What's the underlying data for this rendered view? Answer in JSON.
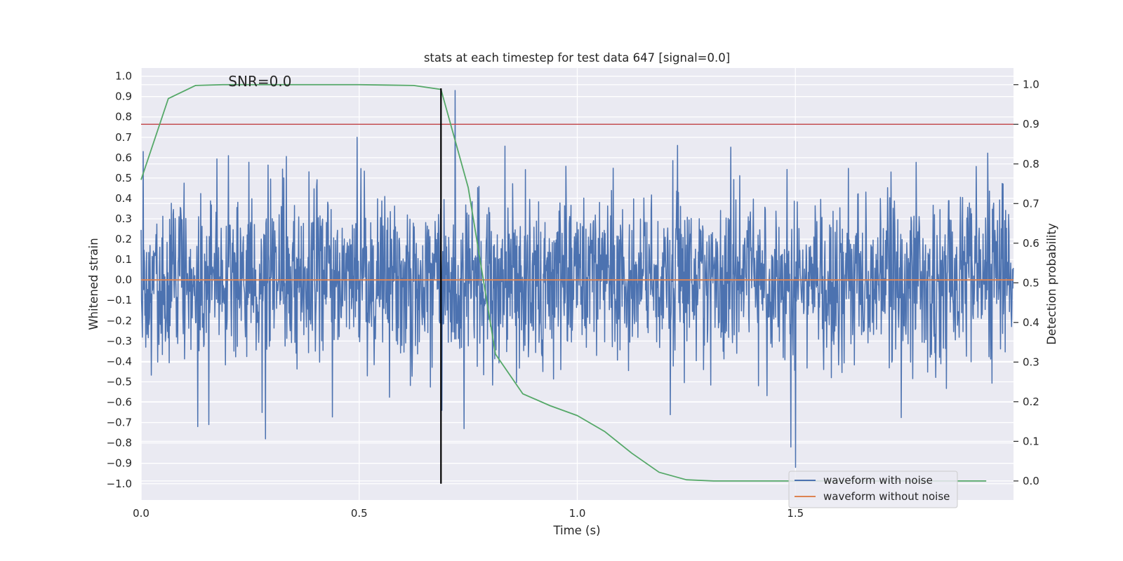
{
  "chart_data": {
    "type": "line",
    "title": "stats at each timestep for test data 647 [signal=0.0]",
    "xlabel": "Time (s)",
    "ylabel_left": "Whitened strain",
    "ylabel_right": "Detection probability",
    "xlim": [
      0.0,
      2.0
    ],
    "ylim_left": [
      -1.08,
      1.04
    ],
    "ylim_right": [
      -0.048,
      1.042
    ],
    "x_ticks": [
      "0.0",
      "0.5",
      "1.0",
      "1.5"
    ],
    "x_tick_values": [
      0.0,
      0.5,
      1.0,
      1.5
    ],
    "y_ticks_left": [
      "1.0",
      "0.9",
      "0.8",
      "0.7",
      "0.6",
      "0.5",
      "0.4",
      "0.3",
      "0.2",
      "0.1",
      "0.0",
      "−0.1",
      "−0.2",
      "−0.3",
      "−0.4",
      "−0.5",
      "−0.6",
      "−0.7",
      "−0.8",
      "−0.9",
      "−1.0"
    ],
    "y_tick_values_left": [
      1.0,
      0.9,
      0.8,
      0.7,
      0.6,
      0.5,
      0.4,
      0.3,
      0.2,
      0.1,
      0.0,
      -0.1,
      -0.2,
      -0.3,
      -0.4,
      -0.5,
      -0.6,
      -0.7,
      -0.8,
      -0.9,
      -1.0
    ],
    "y_ticks_right": [
      "1.0",
      "0.9",
      "0.8",
      "0.7",
      "0.6",
      "0.5",
      "0.4",
      "0.3",
      "0.2",
      "0.1",
      "0.0"
    ],
    "y_tick_values_right": [
      1.0,
      0.9,
      0.8,
      0.7,
      0.6,
      0.5,
      0.4,
      0.3,
      0.2,
      0.1,
      0.0
    ],
    "annotation": "SNR=0.0",
    "annotation_at": {
      "x": 0.2,
      "y": 0.95
    },
    "series": [
      {
        "name": "waveform with noise",
        "color": "#4c72b0",
        "axis": "left",
        "noise": {
          "n_samples": 2048,
          "t_start": 0.0,
          "t_end": 1.9995,
          "std": 0.21,
          "max_abs": 0.93,
          "seed": 647
        },
        "spikes": [
          {
            "x": 0.005,
            "y": 0.63
          },
          {
            "x": 0.13,
            "y": -0.72
          },
          {
            "x": 0.155,
            "y": -0.71
          },
          {
            "x": 0.2,
            "y": 0.61
          },
          {
            "x": 0.285,
            "y": -0.78
          },
          {
            "x": 0.495,
            "y": 0.7
          },
          {
            "x": 0.69,
            "y": -0.64
          },
          {
            "x": 0.72,
            "y": 0.93
          },
          {
            "x": 0.74,
            "y": -0.73
          },
          {
            "x": 1.23,
            "y": 0.66
          },
          {
            "x": 1.49,
            "y": -0.82
          },
          {
            "x": 1.5,
            "y": -0.92
          }
        ]
      },
      {
        "name": "waveform without noise",
        "color": "#dd8452",
        "axis": "left",
        "x": [
          0.0,
          2.0
        ],
        "y": [
          0.0,
          0.0
        ]
      },
      {
        "name": "detection probability",
        "color": "#55a868",
        "axis": "right",
        "x": [
          0.0,
          0.0625,
          0.125,
          0.1875,
          0.25,
          0.3125,
          0.375,
          0.4375,
          0.5,
          0.5625,
          0.625,
          0.6875,
          0.75,
          0.8125,
          0.875,
          0.9375,
          1.0,
          1.0625,
          1.125,
          1.1875,
          1.25,
          1.3125,
          1.375,
          1.4375,
          1.5,
          1.5625,
          1.625,
          1.6875,
          1.75,
          1.8125,
          1.875,
          1.9375
        ],
        "y": [
          0.76,
          0.965,
          0.998,
          1.0,
          1.0,
          1.0,
          1.0,
          1.0,
          1.0,
          0.999,
          0.998,
          0.988,
          0.74,
          0.32,
          0.22,
          0.19,
          0.165,
          0.125,
          0.07,
          0.022,
          0.003,
          0.0,
          0.0,
          0.0,
          0.0,
          0.0,
          0.0,
          0.0,
          0.0,
          0.0,
          0.0,
          0.0
        ]
      }
    ],
    "threshold_line": {
      "axis": "right",
      "y": 0.9,
      "color": "#c44e52"
    },
    "marker_line": {
      "x": 0.6875,
      "y_from": -1.0,
      "y_to": 0.94,
      "axis": "left",
      "color": "#000000"
    },
    "legend": {
      "placement": "lower-right",
      "entries": [
        {
          "label": "waveform with noise",
          "color": "#4c72b0"
        },
        {
          "label": "waveform without noise",
          "color": "#dd8452"
        }
      ]
    },
    "grid": true,
    "colors": {
      "axes_bg": "#eaeaf2",
      "grid": "#ffffff",
      "text": "#262626"
    }
  }
}
